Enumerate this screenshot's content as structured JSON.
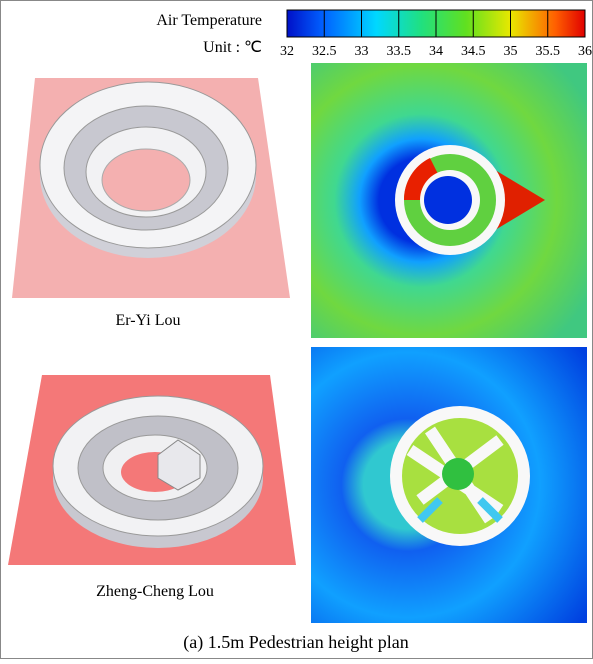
{
  "legend": {
    "title": "Air Temperature",
    "unit": "Unit : ℃",
    "range": [
      32,
      36
    ],
    "ticks": [
      32,
      32.5,
      33,
      33.5,
      34,
      34.5,
      35,
      35.5,
      36
    ]
  },
  "panels": [
    {
      "label": "Er-Yi Lou"
    },
    {
      "label": "Zheng-Cheng Lou"
    }
  ],
  "caption": "(a) 1.5m Pedestrian height plan"
}
